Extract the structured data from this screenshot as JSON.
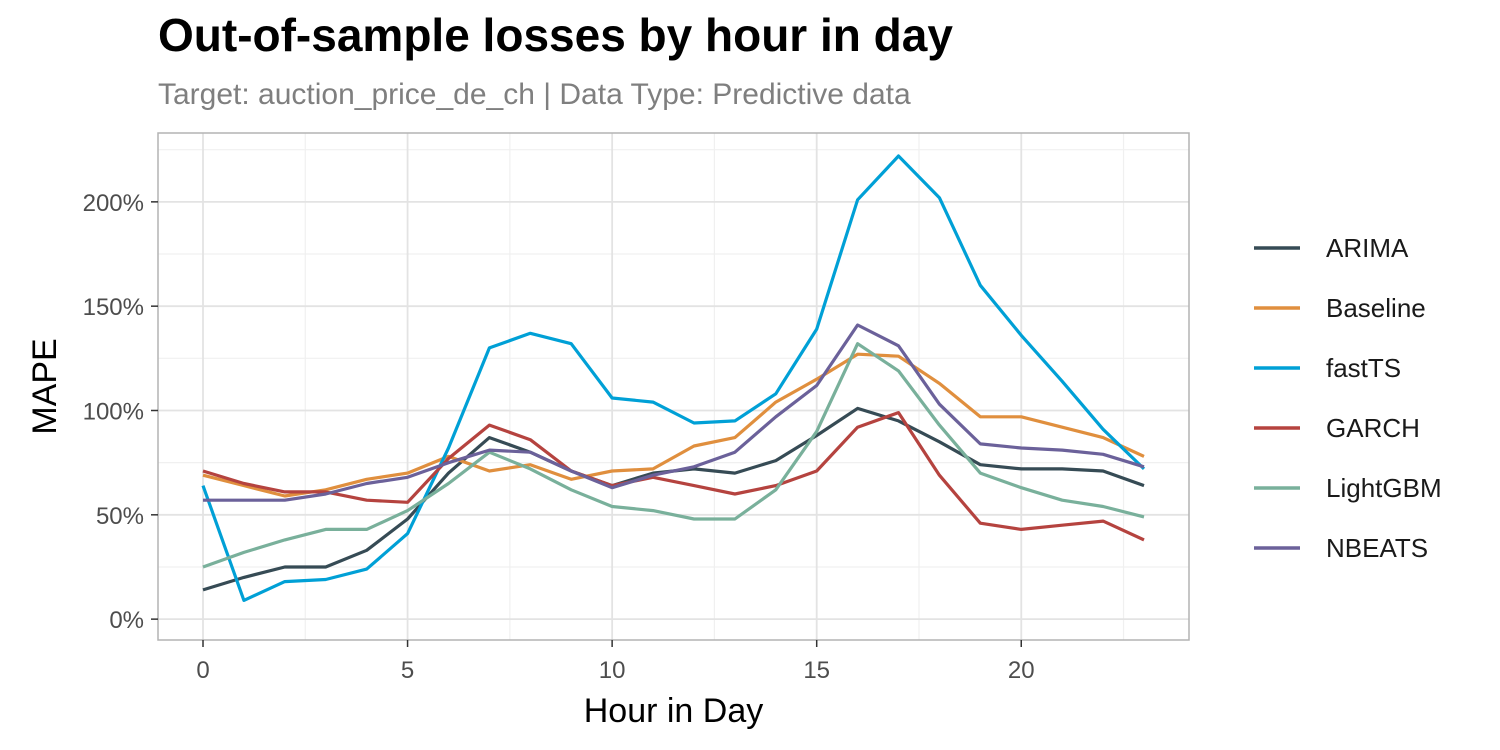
{
  "chart_data": {
    "type": "line",
    "title": "Out-of-sample losses by hour in day",
    "subtitle": "Target: auction_price_de_ch | Data Type: Predictive data",
    "xlabel": "Hour in Day",
    "ylabel": "MAPE",
    "xlim": [
      -1.1,
      24.1
    ],
    "ylim": [
      -10,
      233
    ],
    "x_ticks": [
      0,
      5,
      10,
      15,
      20
    ],
    "y_ticks": [
      0,
      50,
      100,
      150,
      200
    ],
    "y_tick_labels": [
      "0%",
      "50%",
      "100%",
      "150%",
      "200%"
    ],
    "grid": true,
    "legend_position": "right",
    "x": [
      0,
      1,
      2,
      3,
      4,
      5,
      6,
      7,
      8,
      9,
      10,
      11,
      12,
      13,
      14,
      15,
      16,
      17,
      18,
      19,
      20,
      21,
      22,
      23
    ],
    "series": [
      {
        "name": "ARIMA",
        "color": "#364b55",
        "values": [
          14,
          20,
          25,
          25,
          33,
          48,
          70,
          87,
          80,
          71,
          64,
          70,
          72,
          70,
          76,
          88,
          101,
          95,
          85,
          74,
          72,
          72,
          71,
          64
        ]
      },
      {
        "name": "Baseline",
        "color": "#e08f3e",
        "values": [
          69,
          64,
          59,
          62,
          67,
          70,
          78,
          71,
          74,
          67,
          71,
          72,
          83,
          87,
          104,
          115,
          127,
          126,
          113,
          97,
          97,
          92,
          87,
          78
        ]
      },
      {
        "name": "fastTS",
        "color": "#00a0d6",
        "values": [
          64,
          9,
          18,
          19,
          24,
          41,
          82,
          130,
          137,
          132,
          106,
          104,
          94,
          95,
          108,
          139,
          201,
          222,
          202,
          160,
          136,
          114,
          91,
          72
        ]
      },
      {
        "name": "GARCH",
        "color": "#b5433f",
        "values": [
          71,
          65,
          61,
          61,
          57,
          56,
          77,
          93,
          86,
          71,
          64,
          68,
          64,
          60,
          64,
          71,
          92,
          99,
          69,
          46,
          43,
          45,
          47,
          38
        ]
      },
      {
        "name": "LightGBM",
        "color": "#79b09b",
        "values": [
          25,
          32,
          38,
          43,
          43,
          52,
          65,
          80,
          72,
          62,
          54,
          52,
          48,
          48,
          62,
          90,
          132,
          119,
          93,
          70,
          63,
          57,
          54,
          49
        ]
      },
      {
        "name": "NBEATS",
        "color": "#6b619a",
        "values": [
          57,
          57,
          57,
          60,
          65,
          68,
          75,
          81,
          80,
          71,
          63,
          69,
          73,
          80,
          97,
          112,
          141,
          131,
          103,
          84,
          82,
          81,
          79,
          73
        ]
      }
    ]
  }
}
